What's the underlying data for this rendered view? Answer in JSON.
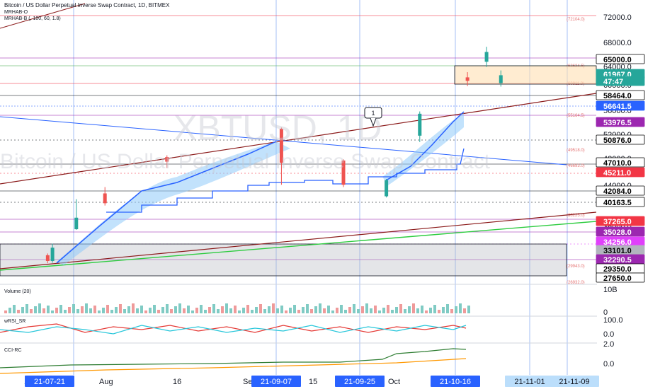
{
  "header": {
    "title": "Bitcoin / US Dollar Perpetual Inverse Swap Contract, 1D, BITMEX",
    "indicator1": "MRHAB-O",
    "indicator2": "MRHAB-B (, 100, 60, 1.8)"
  },
  "watermark": {
    "symbol": "XBTUSD, 1D",
    "description": "Bitcoin / US Dollar Perpetual Inverse Swap Contract"
  },
  "price_axis": {
    "ticks": [
      "72000.0",
      "68000.0",
      "64000.0",
      "60000.0",
      "56000.0",
      "52000.0",
      "48000.0",
      "44000.0",
      "36000.0"
    ]
  },
  "price_labels": [
    {
      "text": "65000.0",
      "bg": "#ffffff",
      "fg": "#000000",
      "border": "#000000"
    },
    {
      "text": "61967.0",
      "bg": "#26a69a",
      "fg": "#ffffff",
      "border": "#26a69a"
    },
    {
      "text": "47:47",
      "bg": "#26a69a",
      "fg": "#ffffff",
      "border": "#26a69a"
    },
    {
      "text": "58464.0",
      "bg": "#ffffff",
      "fg": "#000000",
      "border": "#000000"
    },
    {
      "text": "56641.5",
      "bg": "#2962ff",
      "fg": "#ffffff",
      "border": "#2962ff"
    },
    {
      "text": "53976.5",
      "bg": "#9c27b0",
      "fg": "#ffffff",
      "border": "#9c27b0"
    },
    {
      "text": "50876.0",
      "bg": "#ffffff",
      "fg": "#000000",
      "border": "#000000"
    },
    {
      "text": "47010.0",
      "bg": "#ffffff",
      "fg": "#000000",
      "border": "#000000"
    },
    {
      "text": "45211.0",
      "bg": "#f23645",
      "fg": "#ffffff",
      "border": "#f23645"
    },
    {
      "text": "42084.0",
      "bg": "#ffffff",
      "fg": "#000000",
      "border": "#000000"
    },
    {
      "text": "40163.5",
      "bg": "#ffffff",
      "fg": "#000000",
      "border": "#000000"
    },
    {
      "text": "37265.0",
      "bg": "#f23645",
      "fg": "#ffffff",
      "border": "#f23645"
    },
    {
      "text": "35028.0",
      "bg": "#9c27b0",
      "fg": "#ffffff",
      "border": "#9c27b0"
    },
    {
      "text": "34256.0",
      "bg": "#e040fb",
      "fg": "#ffffff",
      "border": "#e040fb"
    },
    {
      "text": "33101.0",
      "bg": "#b2b5be",
      "fg": "#000000",
      "border": "#b2b5be"
    },
    {
      "text": "32290.5",
      "bg": "#9c27b0",
      "fg": "#ffffff",
      "border": "#9c27b0"
    },
    {
      "text": "29350.0",
      "bg": "#ffffff",
      "fg": "#000000",
      "border": "#000000"
    },
    {
      "text": "27650.0",
      "bg": "#ffffff",
      "fg": "#000000",
      "border": "#000000"
    }
  ],
  "level_tags": [
    "(72104.0)",
    "(63634.5)",
    "(60811.0)",
    "(55164.5)",
    "(49518.0)",
    "(46693.0)",
    "(38225.0)",
    "(29943.0)",
    "(26932.0)"
  ],
  "callout": "1",
  "panes": {
    "volume": {
      "label": "Volume (20)",
      "axis": [
        "10B",
        "0"
      ]
    },
    "rsi": {
      "label": "wRSI_SR",
      "axis": [
        "100.0",
        "0.0"
      ]
    },
    "cci": {
      "label": "CCI-RC",
      "axis": [
        "2.0",
        "0.0"
      ]
    }
  },
  "time_axis": {
    "labels": [
      "1",
      "Aug",
      "16",
      "Se",
      "15",
      "Oct",
      "5"
    ],
    "highlights": [
      "21-07-21",
      "21-09-07",
      "21-09-25",
      "21-10-16",
      "21-11-01",
      "21-11-09"
    ]
  },
  "colors": {
    "up": "#26a69a",
    "down": "#ef5350",
    "accent": "#2962ff"
  },
  "chart_data": {
    "type": "candlestick",
    "title": "Bitcoin / US Dollar Perpetual Inverse Swap Contract, 1D, BITMEX",
    "ylim": [
      26000,
      75000
    ],
    "x_range": [
      "2021-07-10",
      "2021-11-12"
    ],
    "ohlc": [
      {
        "date": "2021-07-20",
        "open": 30800,
        "high": 31100,
        "low": 29400,
        "close": 29800
      },
      {
        "date": "2021-07-21",
        "open": 29800,
        "high": 32800,
        "low": 29500,
        "close": 32100
      },
      {
        "date": "2021-07-26",
        "open": 35300,
        "high": 40500,
        "low": 35200,
        "close": 37300
      },
      {
        "date": "2021-08-01",
        "open": 41500,
        "high": 42600,
        "low": 39400,
        "close": 39800
      },
      {
        "date": "2021-08-14",
        "open": 47800,
        "high": 48100,
        "low": 45900,
        "close": 47000
      },
      {
        "date": "2021-09-07",
        "open": 52700,
        "high": 52900,
        "low": 43000,
        "close": 46800
      },
      {
        "date": "2021-09-20",
        "open": 47200,
        "high": 47400,
        "low": 42600,
        "close": 43000
      },
      {
        "date": "2021-09-29",
        "open": 41000,
        "high": 44000,
        "low": 40800,
        "close": 43800
      },
      {
        "date": "2021-10-06",
        "open": 51500,
        "high": 55700,
        "low": 50400,
        "close": 55300
      },
      {
        "date": "2021-10-16",
        "open": 61600,
        "high": 62500,
        "low": 60100,
        "close": 61000
      },
      {
        "date": "2021-10-20",
        "open": 64300,
        "high": 66900,
        "low": 63400,
        "close": 66000
      },
      {
        "date": "2021-10-23",
        "open": 60600,
        "high": 62800,
        "low": 60000,
        "close": 61967
      }
    ]
  }
}
